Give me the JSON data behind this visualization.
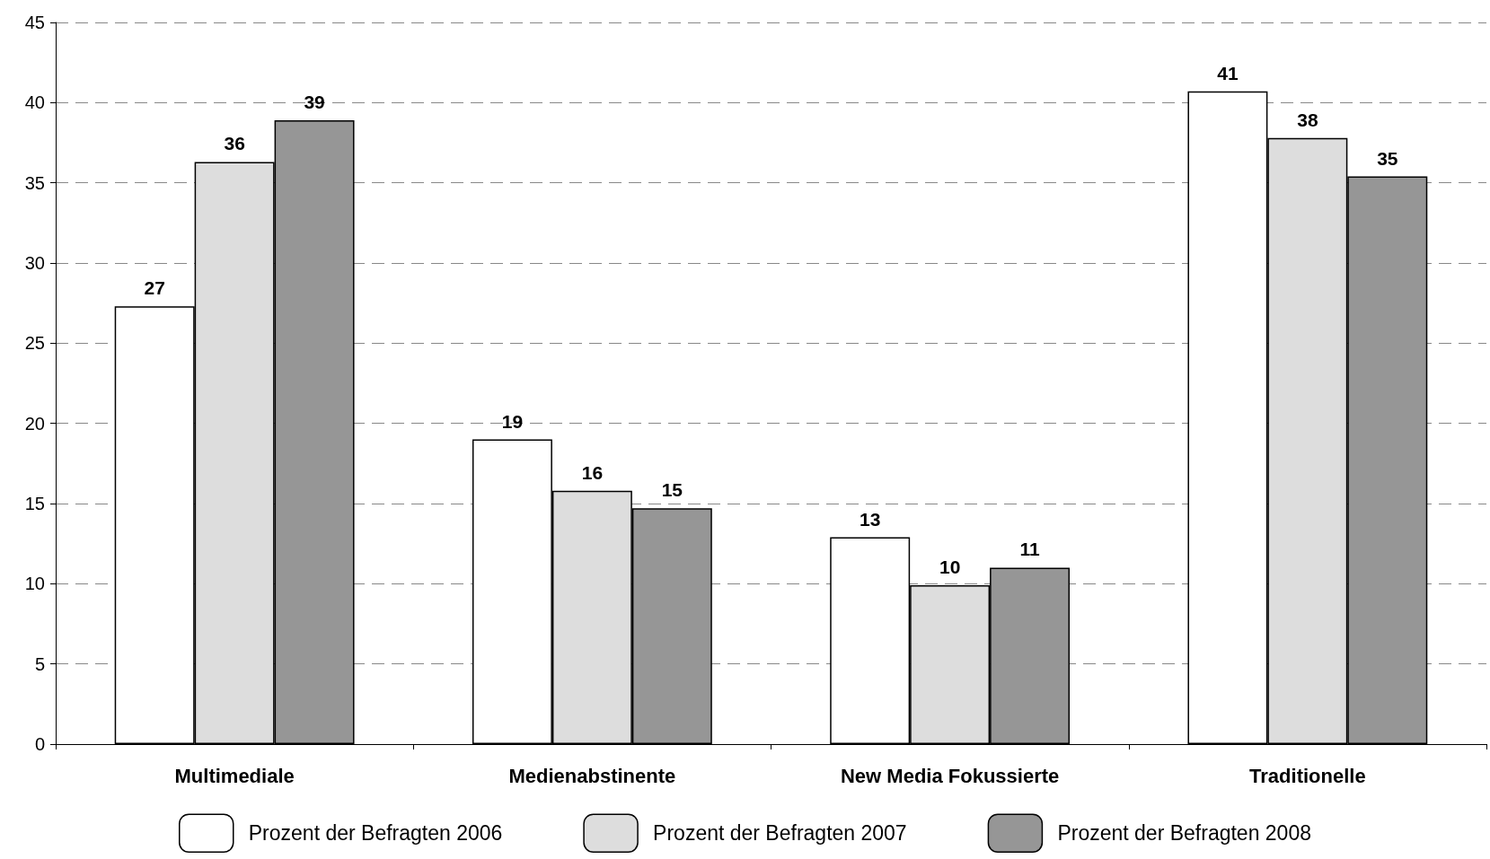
{
  "chart_data": {
    "type": "bar",
    "categories": [
      "Multimediale",
      "Medienabstinente",
      "New Media Fokussierte",
      "Traditionelle"
    ],
    "series": [
      {
        "name": "Prozent der Befragten 2006",
        "color": "#ffffff",
        "values": [
          27.3,
          19.0,
          12.9,
          40.7
        ],
        "value_labels": [
          "27",
          "19",
          "13",
          "41"
        ]
      },
      {
        "name": "Prozent der Befragten 2007",
        "color": "#dddddd",
        "values": [
          36.3,
          15.8,
          9.9,
          37.8
        ],
        "value_labels": [
          "36",
          "16",
          "10",
          "38"
        ]
      },
      {
        "name": "Prozent der Befragten 2008",
        "color": "#969696",
        "values": [
          38.9,
          14.7,
          11.0,
          35.4
        ],
        "value_labels": [
          "39",
          "15",
          "11",
          "35"
        ]
      }
    ],
    "ylim": [
      0,
      45
    ],
    "yticks": [
      0,
      5,
      10,
      15,
      20,
      25,
      30,
      35,
      40,
      45
    ],
    "grid": "y",
    "legend": "bottom"
  }
}
